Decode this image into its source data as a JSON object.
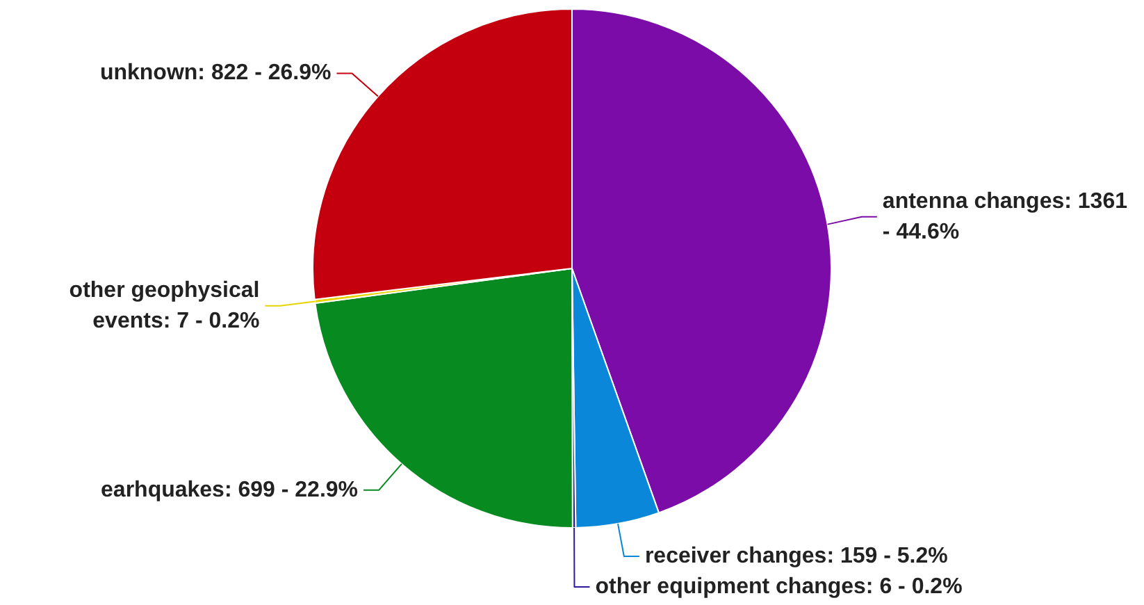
{
  "chart_data": {
    "type": "pie",
    "categories": [
      "antenna changes",
      "receiver changes",
      "other equipment changes",
      "earhquakes",
      "other geophysical events",
      "unknown"
    ],
    "values": [
      1361,
      159,
      6,
      699,
      7,
      822
    ],
    "value_labels": [
      "1361 - 44.6%",
      "159 - 5.2%",
      "6 - 0.2%",
      "699 - 22.9%",
      "7 - 0.2%",
      "822 - 26.9%"
    ],
    "colors": [
      "#7b0ca8",
      "#0a87d8",
      "#2d1a9e",
      "#078a1f",
      "#e6d400",
      "#c4000f"
    ],
    "legend": false
  }
}
